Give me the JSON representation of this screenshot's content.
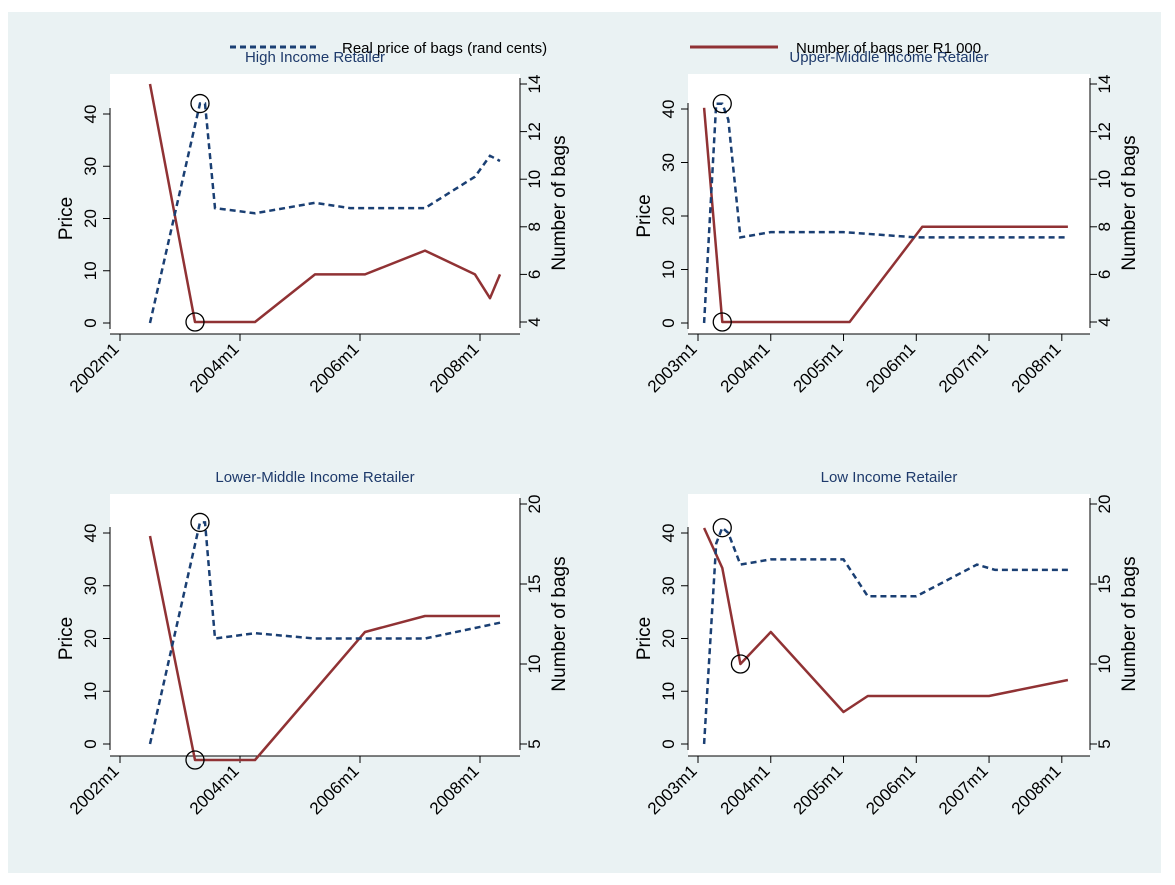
{
  "legend": {
    "price_label": "Real price of bags (rand cents)",
    "bags_label": "Number of bags per R1 000"
  },
  "colors": {
    "background": "#eaf2f3",
    "plot_area": "#ffffff",
    "price_series": "#1a3f73",
    "bags_series": "#903234"
  },
  "chart_data": [
    {
      "type": "line",
      "title": "High Income Retailer",
      "xlabel": "",
      "ylabel": "Price",
      "y2label": "Number of bags",
      "xtick_labels": [
        "2002m1",
        "2004m1",
        "2006m1",
        "2008m1"
      ],
      "xtick_values": [
        0,
        24,
        48,
        72
      ],
      "xlim": [
        0,
        78
      ],
      "ylim": [
        0,
        40
      ],
      "yticks": [
        0,
        10,
        20,
        30,
        40
      ],
      "y2lim": [
        4,
        14
      ],
      "y2ticks": [
        4,
        6,
        8,
        10,
        12,
        14
      ],
      "series": [
        {
          "name": "Real price of bags (rand cents)",
          "x": [
            6,
            16,
            17,
            19,
            27,
            39,
            46,
            59,
            61,
            71,
            74,
            76
          ],
          "y": [
            0,
            42,
            42,
            22,
            21,
            23,
            22,
            22,
            22,
            28,
            32,
            31
          ]
        },
        {
          "name": "Number of bags per R1 000",
          "x": [
            6,
            15,
            27,
            39,
            49,
            61,
            71,
            74,
            76
          ],
          "y": [
            14,
            4,
            4,
            6,
            6,
            7,
            6,
            5,
            6
          ]
        }
      ],
      "markers": [
        {
          "series": 0,
          "x": 16,
          "y": 42
        },
        {
          "series": 1,
          "x": 15,
          "y": 4
        }
      ]
    },
    {
      "type": "line",
      "title": "Upper-Middle Income Retailer",
      "xlabel": "",
      "ylabel": "Price",
      "y2label": "Number of bags",
      "xtick_labels": [
        "2003m1",
        "2004m1",
        "2005m1",
        "2006m1",
        "2007m1",
        "2008m1"
      ],
      "xtick_values": [
        0,
        12,
        24,
        36,
        48,
        60
      ],
      "xlim": [
        0,
        63
      ],
      "ylim": [
        0,
        40
      ],
      "yticks": [
        0,
        10,
        20,
        30,
        40
      ],
      "y2lim": [
        4,
        14
      ],
      "y2ticks": [
        4,
        6,
        8,
        10,
        12,
        14
      ],
      "series": [
        {
          "name": "Real price of bags (rand cents)",
          "x": [
            1,
            3,
            4,
            5,
            7,
            12,
            24,
            36,
            48,
            61
          ],
          "y": [
            0,
            41,
            41,
            38,
            16,
            17,
            17,
            16,
            16,
            16
          ]
        },
        {
          "name": "Number of bags per R1 000",
          "x": [
            1,
            4,
            25,
            37,
            61
          ],
          "y": [
            13,
            4,
            4,
            8,
            8
          ]
        }
      ],
      "markers": [
        {
          "series": 0,
          "x": 4,
          "y": 41
        },
        {
          "series": 1,
          "x": 4,
          "y": 4
        }
      ]
    },
    {
      "type": "line",
      "title": "Lower-Middle Income Retailer",
      "xlabel": "",
      "ylabel": "Price",
      "y2label": "Number of bags",
      "xtick_labels": [
        "2002m1",
        "2004m1",
        "2006m1",
        "2008m1"
      ],
      "xtick_values": [
        0,
        24,
        48,
        72
      ],
      "xlim": [
        0,
        78
      ],
      "ylim": [
        0,
        40
      ],
      "yticks": [
        0,
        10,
        20,
        30,
        40
      ],
      "y2lim": [
        5,
        20
      ],
      "y2ticks": [
        5,
        10,
        15,
        20
      ],
      "series": [
        {
          "name": "Real price of bags (rand cents)",
          "x": [
            6,
            16,
            17,
            19,
            27,
            39,
            46,
            59,
            61,
            71,
            76
          ],
          "y": [
            0,
            42,
            42,
            20,
            21,
            20,
            20,
            20,
            20,
            22,
            23
          ]
        },
        {
          "name": "Number of bags per R1 000",
          "x": [
            6,
            15,
            27,
            49,
            61,
            76
          ],
          "y": [
            18,
            4,
            4,
            12,
            13,
            13
          ]
        }
      ],
      "markers": [
        {
          "series": 0,
          "x": 16,
          "y": 42
        },
        {
          "series": 1,
          "x": 15,
          "y": 4
        }
      ]
    },
    {
      "type": "line",
      "title": "Low Income Retailer",
      "xlabel": "",
      "ylabel": "Price",
      "y2label": "Number of bags",
      "xtick_labels": [
        "2003m1",
        "2004m1",
        "2005m1",
        "2006m1",
        "2007m1",
        "2008m1"
      ],
      "xtick_values": [
        0,
        12,
        24,
        36,
        48,
        60
      ],
      "xlim": [
        0,
        63
      ],
      "ylim": [
        0,
        40
      ],
      "yticks": [
        0,
        10,
        20,
        30,
        40
      ],
      "y2lim": [
        5,
        20
      ],
      "y2ticks": [
        5,
        10,
        15,
        20
      ],
      "series": [
        {
          "name": "Real price of bags (rand cents)",
          "x": [
            1,
            3,
            4,
            5,
            7,
            12,
            24,
            28,
            36,
            46,
            49,
            61
          ],
          "y": [
            0,
            38,
            41,
            40,
            34,
            35,
            35,
            28,
            28,
            34,
            33,
            33
          ]
        },
        {
          "name": "Number of bags per R1 000",
          "x": [
            1,
            4,
            7,
            12,
            24,
            28,
            36,
            48,
            61
          ],
          "y": [
            18.5,
            16,
            10,
            12,
            7,
            8,
            8,
            8,
            9
          ]
        }
      ],
      "markers": [
        {
          "series": 0,
          "x": 4,
          "y": 41
        },
        {
          "series": 1,
          "x": 7,
          "y": 10
        }
      ]
    }
  ]
}
